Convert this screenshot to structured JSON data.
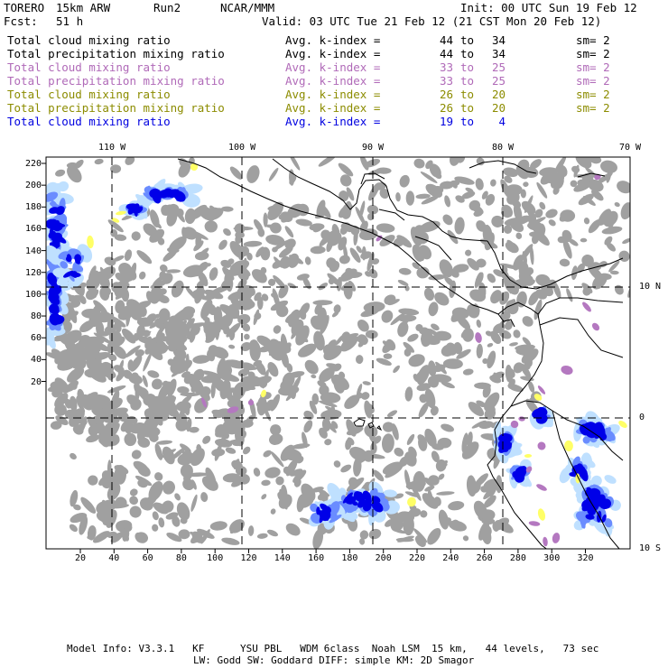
{
  "header": {
    "model": "TORERO",
    "resolution": "15km ARW",
    "run": "Run2",
    "org": "NCAR/MMM",
    "init": "Init: 00 UTC Sun 19 Feb 12",
    "fcst_label": "Fcst:",
    "fcst_value": "51 h",
    "valid": "Valid: 03 UTC Tue 21 Feb 12 (21 CST Mon 20 Feb 12)"
  },
  "legend": [
    {
      "label": "Total cloud mixing ratio",
      "avg": "Avg. k-index =",
      "from": "44",
      "to": "to",
      "till": "34",
      "sm": "sm= 2",
      "color": "#000000"
    },
    {
      "label": "Total precipitation mixing ratio",
      "avg": "Avg. k-index =",
      "from": "44",
      "to": "to",
      "till": "34",
      "sm": "sm= 2",
      "color": "#000000"
    },
    {
      "label": "Total cloud mixing ratio",
      "avg": "Avg. k-index =",
      "from": "33",
      "to": "to",
      "till": "25",
      "sm": "sm= 2",
      "color": "#b06ab8"
    },
    {
      "label": "Total precipitation mixing ratio",
      "avg": "Avg. k-index =",
      "from": "33",
      "to": "to",
      "till": "25",
      "sm": "sm= 2",
      "color": "#b06ab8"
    },
    {
      "label": "Total cloud mixing ratio",
      "avg": "Avg. k-index =",
      "from": "26",
      "to": "to",
      "till": "20",
      "sm": "sm= 2",
      "color": "#8c8c00"
    },
    {
      "label": "Total precipitation mixing ratio",
      "avg": "Avg. k-index =",
      "from": "26",
      "to": "to",
      "till": "20",
      "sm": "sm= 2",
      "color": "#8c8c00"
    },
    {
      "label": "Total cloud mixing ratio",
      "avg": "Avg. k-index =",
      "from": "19",
      "to": "to",
      "till": "4",
      "sm": "",
      "color": "#0000e0"
    }
  ],
  "axes": {
    "top": [
      "110 W",
      "100 W",
      "90 W",
      "80 W",
      "70 W"
    ],
    "right": [
      "10 N",
      "0",
      "10 S"
    ],
    "left": [
      "220",
      "200",
      "180",
      "160",
      "140",
      "120",
      "100",
      "80",
      "60",
      "40",
      "20"
    ],
    "bottom": [
      "20",
      "40",
      "60",
      "80",
      "100",
      "120",
      "140",
      "160",
      "180",
      "200",
      "220",
      "240",
      "260",
      "280",
      "300",
      "320"
    ]
  },
  "colors": {
    "cloud": "#a0a0a0",
    "purple": "#b478c0",
    "yellow": "#ffff66",
    "light_blue": "#bfe0ff",
    "mid_blue": "#6a8cff",
    "blue": "#0000e8"
  },
  "footer": {
    "line1": "Model Info: V3.3.1   KF      YSU PBL   WDM 6class  Noah LSM  15 km,   44 levels,   73 sec",
    "line2": "LW: Godd SW: Goddard DIFF: simple KM: 2D Smagor"
  }
}
